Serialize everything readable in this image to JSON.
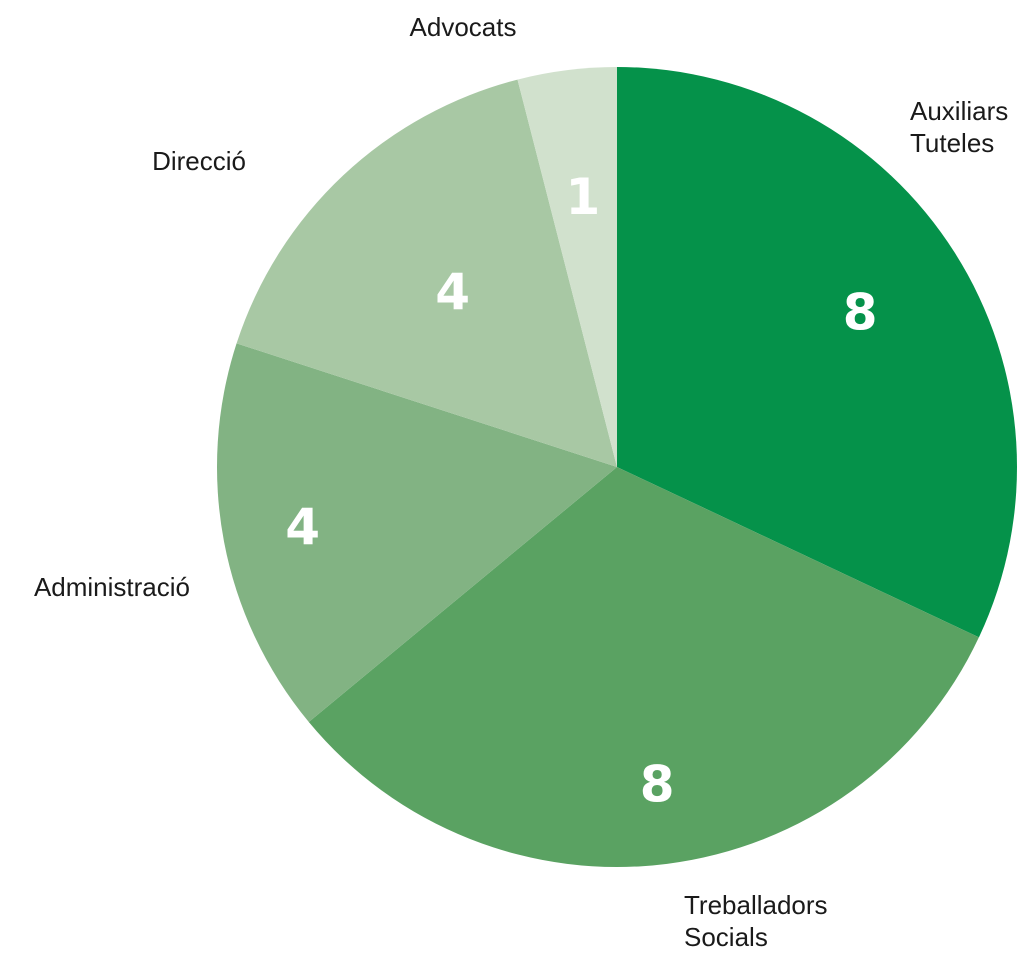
{
  "chart_data": {
    "type": "pie",
    "slices": [
      {
        "label": [
          "Auxiliars",
          "Tuteles"
        ],
        "value": 8,
        "color": "#05924a"
      },
      {
        "label": [
          "Treballadors",
          "Socials"
        ],
        "value": 8,
        "color": "#5aa262"
      },
      {
        "label": [
          "Administració"
        ],
        "value": 4,
        "color": "#82b383"
      },
      {
        "label": [
          "Direcció"
        ],
        "value": 4,
        "color": "#a8c8a4"
      },
      {
        "label": [
          "Advocats"
        ],
        "value": 1,
        "color": "#d1e1cd"
      }
    ]
  }
}
